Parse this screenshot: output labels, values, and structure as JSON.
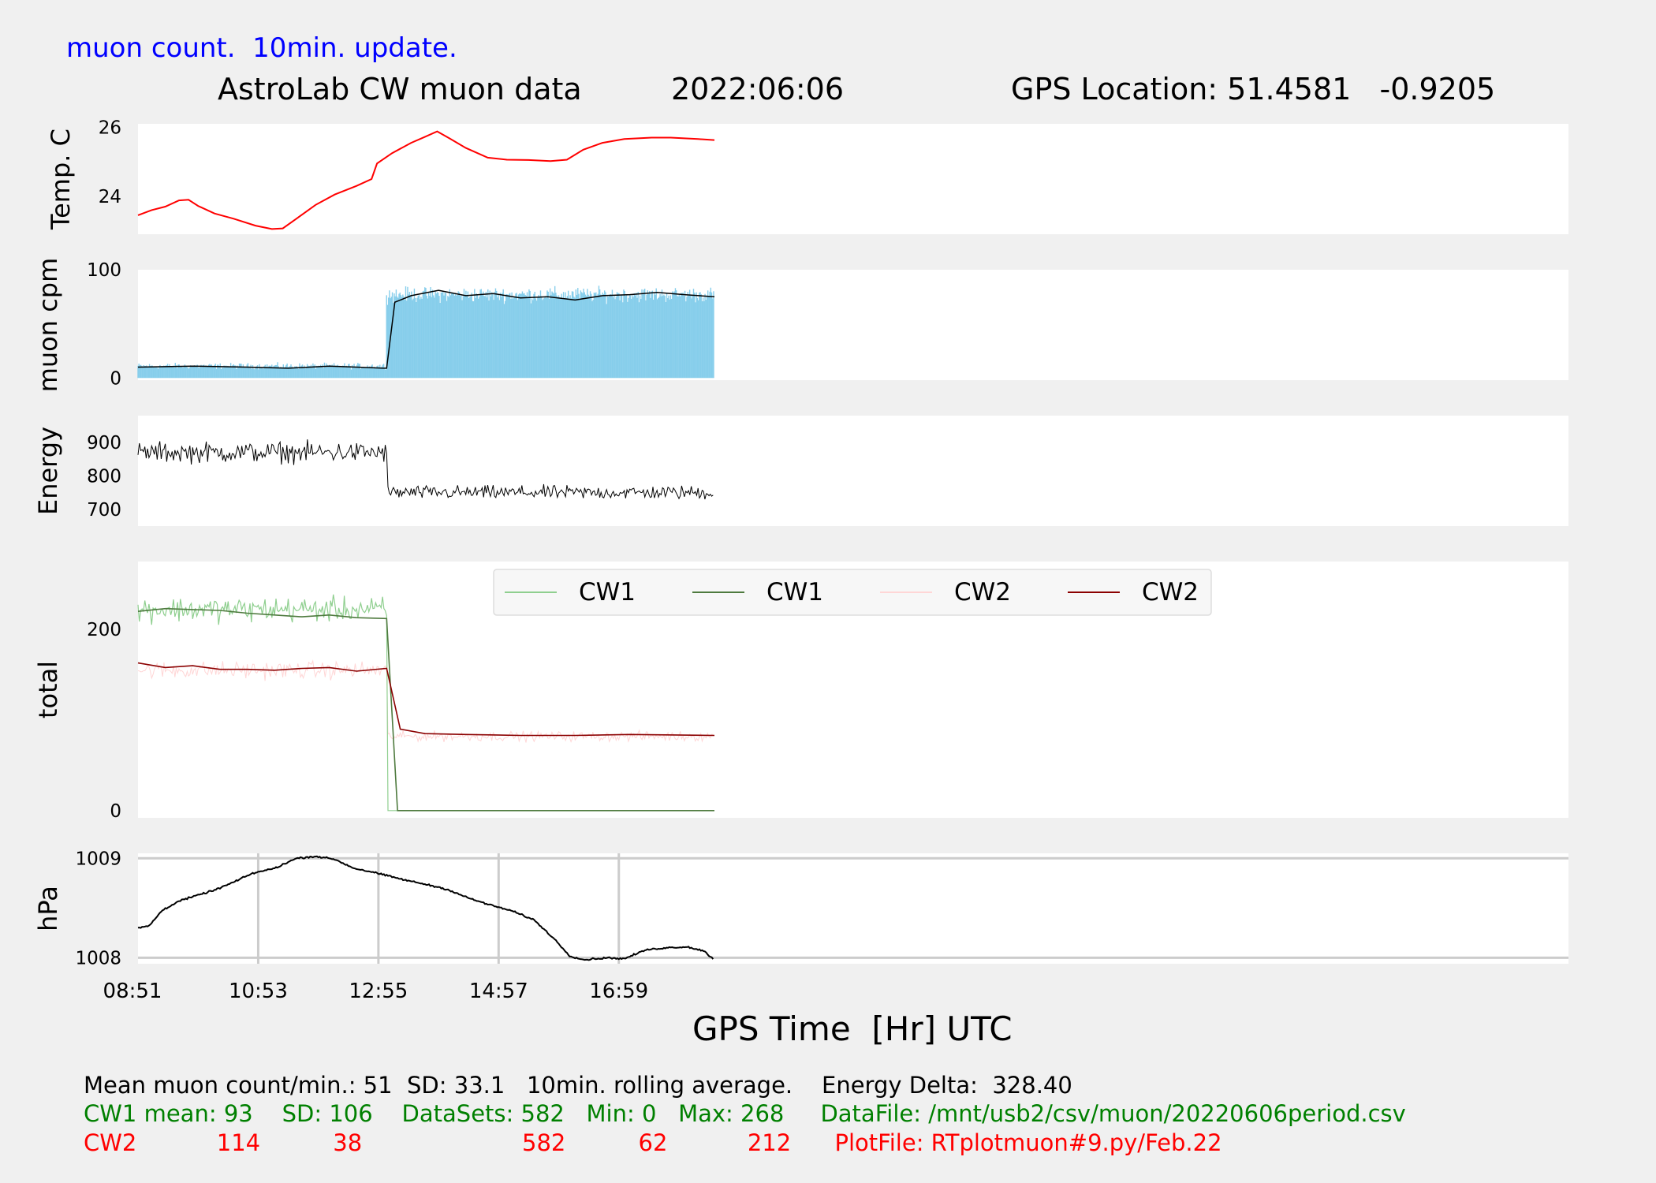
{
  "header_note": "muon count.  10min. update.",
  "title": {
    "main": "AstroLab CW muon data",
    "date": "2022:06:06",
    "gps": "GPS Location: 51.4581   -0.9205"
  },
  "xaxis_title": "GPS Time  [Hr] UTC",
  "colors": {
    "temp": "#ff0000",
    "muon_bars": "#87ceeb",
    "muon_avg": "#000000",
    "energy": "#000000",
    "cw1_raw": "#8fcf8f",
    "cw1_avg": "#4e7a3e",
    "cw2_raw": "#ffd6d6",
    "cw2_avg": "#8b0000",
    "pressure": "#000000",
    "grid": "#cccccc",
    "panel_bg": "#ffffff",
    "figure_bg": "#f0f0f0"
  },
  "chart_data": [
    {
      "type": "line",
      "panel": "temp",
      "ylabel": "Temp. C",
      "yticks": [
        24,
        26
      ],
      "ylim": [
        22.9,
        26.1
      ],
      "xlim": [
        0,
        24
      ],
      "grid": false,
      "series": [
        {
          "values": [
            [
              0,
              23.45
            ],
            [
              0.5,
              23.6
            ],
            [
              1,
              23.7
            ],
            [
              1.5,
              23.88
            ],
            [
              1.85,
              23.9
            ],
            [
              2.2,
              23.72
            ],
            [
              2.8,
              23.5
            ],
            [
              3.5,
              23.35
            ],
            [
              4.3,
              23.15
            ],
            [
              4.9,
              23.05
            ],
            [
              5.3,
              23.07
            ],
            [
              5.8,
              23.35
            ],
            [
              6.5,
              23.75
            ],
            [
              7.2,
              24.05
            ],
            [
              8,
              24.3
            ],
            [
              8.55,
              24.5
            ],
            [
              8.75,
              24.95
            ],
            [
              9.3,
              25.25
            ],
            [
              10,
              25.55
            ],
            [
              10.5,
              25.72
            ],
            [
              10.95,
              25.88
            ],
            [
              11.4,
              25.68
            ],
            [
              12,
              25.4
            ],
            [
              12.8,
              25.12
            ],
            [
              13.5,
              25.06
            ],
            [
              14.3,
              25.05
            ],
            [
              15.1,
              25.02
            ],
            [
              15.7,
              25.06
            ],
            [
              16.3,
              25.35
            ],
            [
              17,
              25.55
            ],
            [
              17.8,
              25.66
            ],
            [
              18.8,
              25.7
            ],
            [
              19.5,
              25.7
            ],
            [
              20.5,
              25.66
            ],
            [
              21.1,
              25.63
            ]
          ]
        }
      ]
    },
    {
      "type": "bar",
      "panel": "muon",
      "ylabel": "muon cpm",
      "yticks": [
        0,
        100
      ],
      "ylim": [
        -2,
        100
      ],
      "grid": false,
      "series": [
        {
          "kind": "bars",
          "segments": [
            {
              "from_hr": 0,
              "to_hr": 9.1,
              "mean": 11,
              "sd": 4
            },
            {
              "from_hr": 9.1,
              "to_hr": 21.1,
              "mean": 77,
              "sd": 10
            }
          ]
        },
        {
          "kind": "rolling-average",
          "values": [
            [
              0,
              10
            ],
            [
              2,
              11
            ],
            [
              4,
              10
            ],
            [
              5.5,
              9
            ],
            [
              7,
              11
            ],
            [
              8,
              10
            ],
            [
              9,
              9
            ],
            [
              9.1,
              9
            ],
            [
              9.4,
              70
            ],
            [
              10,
              76
            ],
            [
              11,
              81
            ],
            [
              12,
              76
            ],
            [
              13,
              78
            ],
            [
              14,
              74
            ],
            [
              15,
              75
            ],
            [
              16,
              72
            ],
            [
              17,
              76
            ],
            [
              18,
              77
            ],
            [
              19,
              79
            ],
            [
              20,
              77
            ],
            [
              21.1,
              75
            ]
          ]
        }
      ]
    },
    {
      "type": "line",
      "panel": "energy",
      "ylabel": "Energy",
      "yticks": [
        700,
        800,
        900
      ],
      "ylim": [
        650,
        980
      ],
      "grid": false,
      "series": [
        {
          "segments": [
            {
              "from_hr": 0,
              "to_hr": 9.1,
              "mean": 870,
              "sd": 45
            },
            {
              "from_hr": 9.1,
              "to_hr": 21.1,
              "mean": 750,
              "sd": 30
            }
          ]
        }
      ]
    },
    {
      "type": "line",
      "panel": "total",
      "ylabel": "total",
      "yticks": [
        0,
        200
      ],
      "ylim": [
        -8,
        275
      ],
      "grid": false,
      "legend": {
        "placement": "upper-center",
        "entries": [
          "CW1",
          "CW1",
          "CW2",
          "CW2"
        ]
      },
      "series": [
        {
          "name": "CW1",
          "kind": "raw",
          "segments": [
            {
              "from_hr": 0,
              "to_hr": 9.1,
              "mean": 222,
              "sd": 20
            },
            {
              "from_hr": 9.1,
              "to_hr": 21.1,
              "mean": 0,
              "sd": 0
            }
          ]
        },
        {
          "name": "CW1",
          "kind": "average",
          "values": [
            [
              0,
              220
            ],
            [
              1,
              223
            ],
            [
              2,
              222
            ],
            [
              3,
              221
            ],
            [
              4,
              218
            ],
            [
              5,
              216
            ],
            [
              6,
              214
            ],
            [
              7,
              216
            ],
            [
              8,
              213
            ],
            [
              9.1,
              212
            ],
            [
              9.5,
              0
            ],
            [
              21.1,
              0
            ]
          ]
        },
        {
          "name": "CW2",
          "kind": "raw",
          "segments": [
            {
              "from_hr": 0,
              "to_hr": 9.1,
              "mean": 155,
              "sd": 14
            },
            {
              "from_hr": 9.1,
              "to_hr": 21.1,
              "mean": 82,
              "sd": 8
            }
          ]
        },
        {
          "name": "CW2",
          "kind": "average",
          "values": [
            [
              0,
              163
            ],
            [
              1,
              158
            ],
            [
              2,
              160
            ],
            [
              3,
              156
            ],
            [
              4,
              156
            ],
            [
              5,
              155
            ],
            [
              6,
              157
            ],
            [
              7,
              158
            ],
            [
              8,
              154
            ],
            [
              9.1,
              157
            ],
            [
              9.6,
              90
            ],
            [
              10.5,
              85
            ],
            [
              12,
              84
            ],
            [
              14,
              83
            ],
            [
              16,
              83
            ],
            [
              18,
              84
            ],
            [
              21.1,
              83
            ]
          ]
        }
      ]
    },
    {
      "type": "line",
      "panel": "pressure",
      "ylabel": "hPa",
      "yticks": [
        1008,
        1009
      ],
      "yticklabels": [
        "1008",
        "1009"
      ],
      "ylim": [
        1007.94,
        1009.05
      ],
      "grid": true,
      "xticks": [
        0,
        4.4,
        8.8,
        13.2,
        17.6
      ],
      "xticklabels": [
        "08:51",
        "10:53",
        "12:55",
        "14:57",
        "16:59"
      ],
      "series": [
        {
          "values": [
            [
              0,
              1008.3
            ],
            [
              0.4,
              1008.32
            ],
            [
              0.9,
              1008.48
            ],
            [
              1.5,
              1008.57
            ],
            [
              2.2,
              1008.63
            ],
            [
              2.8,
              1008.68
            ],
            [
              3.5,
              1008.76
            ],
            [
              4.2,
              1008.85
            ],
            [
              5,
              1008.9
            ],
            [
              5.8,
              1009.0
            ],
            [
              6.5,
              1009.02
            ],
            [
              7.2,
              1008.99
            ],
            [
              7.9,
              1008.9
            ],
            [
              8.6,
              1008.86
            ],
            [
              9.2,
              1008.82
            ],
            [
              9.8,
              1008.78
            ],
            [
              10.5,
              1008.74
            ],
            [
              11.3,
              1008.69
            ],
            [
              12.1,
              1008.6
            ],
            [
              12.9,
              1008.53
            ],
            [
              13.7,
              1008.47
            ],
            [
              14.5,
              1008.38
            ],
            [
              15.2,
              1008.2
            ],
            [
              15.8,
              1008.02
            ],
            [
              16.3,
              1007.98
            ],
            [
              17.2,
              1008.0
            ],
            [
              17.8,
              1007.99
            ],
            [
              18.6,
              1008.08
            ],
            [
              19.3,
              1008.1
            ],
            [
              20.1,
              1008.11
            ],
            [
              20.7,
              1008.07
            ],
            [
              21.1,
              1007.98
            ]
          ]
        }
      ]
    }
  ],
  "footer": {
    "line1": "Mean muon count/min.: 51  SD: 33.1   10min. rolling average.    Energy Delta:  328.40",
    "cw1": "CW1 mean: 93    SD: 106    DataSets: 582   Min: 0   Max: 268     DataFile: /mnt/usb2/csv/muon/20220606period.csv",
    "cw2": "CW2           114          38                      582          62           212      PlotFile: RTplotmuon#9.py/Feb.22"
  }
}
